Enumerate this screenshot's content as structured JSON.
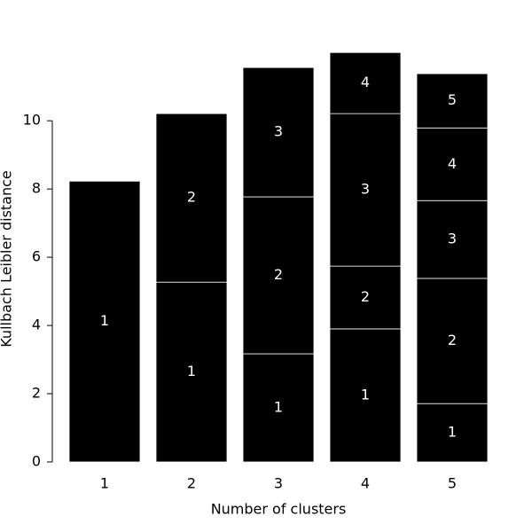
{
  "chart_data": {
    "type": "stacked_bar",
    "x_label": "Number of clusters",
    "y_label": "Kullbach Leibler distance",
    "categories": [
      "1",
      "2",
      "3",
      "4",
      "5"
    ],
    "series": [
      {
        "name": "1",
        "color": "#000000",
        "values": [
          8.23,
          5.27,
          3.17,
          3.9,
          1.71
        ]
      },
      {
        "name": "2",
        "color": "#000000",
        "values": [
          null,
          4.94,
          4.6,
          1.84,
          3.67
        ]
      },
      {
        "name": "3",
        "color": "#000000",
        "values": [
          null,
          null,
          3.79,
          4.47,
          2.28
        ]
      },
      {
        "name": "4",
        "color": "#000000",
        "values": [
          null,
          null,
          null,
          1.79,
          2.13
        ]
      },
      {
        "name": "5",
        "color": "#000000",
        "values": [
          null,
          null,
          null,
          null,
          1.59
        ]
      }
    ],
    "ylim": [
      0,
      12.5
    ],
    "yticks": [
      0,
      2,
      4,
      6,
      8,
      10
    ]
  }
}
